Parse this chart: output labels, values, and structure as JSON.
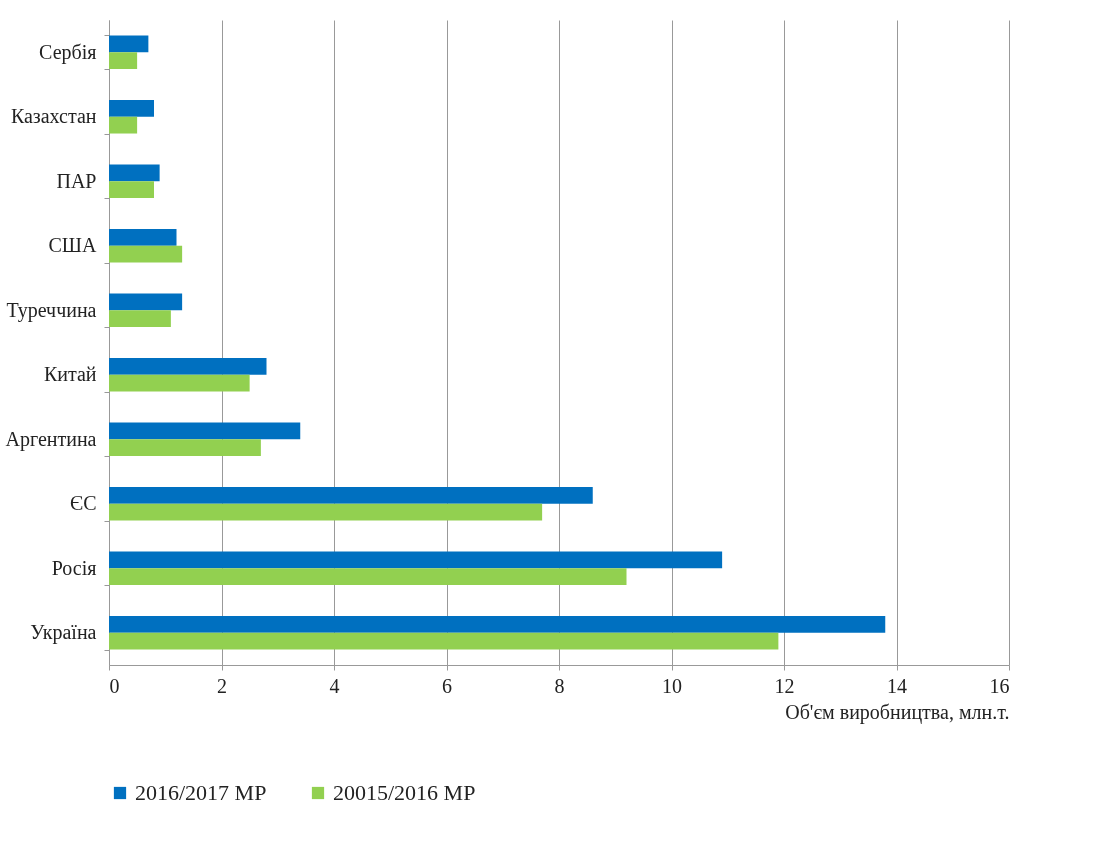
{
  "chart_data": {
    "type": "bar",
    "orientation": "horizontal",
    "categories": [
      "Сербія",
      "Казахстан",
      "ПАР",
      "США",
      "Туреччина",
      "Китай",
      "Аргентина",
      "ЄС",
      "Росія",
      "Україна"
    ],
    "series": [
      {
        "name": "2016/2017 МР",
        "color": "#0070c0",
        "values": [
          0.7,
          0.8,
          0.9,
          1.2,
          1.3,
          2.8,
          3.4,
          8.6,
          10.9,
          13.8
        ]
      },
      {
        "name": "20015/2016 МР",
        "color": "#92d050",
        "values": [
          0.5,
          0.5,
          0.8,
          1.3,
          1.1,
          2.5,
          2.7,
          7.7,
          9.2,
          11.9
        ]
      }
    ],
    "xlabel": "Об'єм виробництва, млн.т.",
    "xlim": [
      0,
      16
    ],
    "xticks": [
      0,
      2,
      4,
      6,
      8,
      10,
      12,
      14,
      16
    ],
    "grid": "x",
    "legend": "bottom"
  }
}
